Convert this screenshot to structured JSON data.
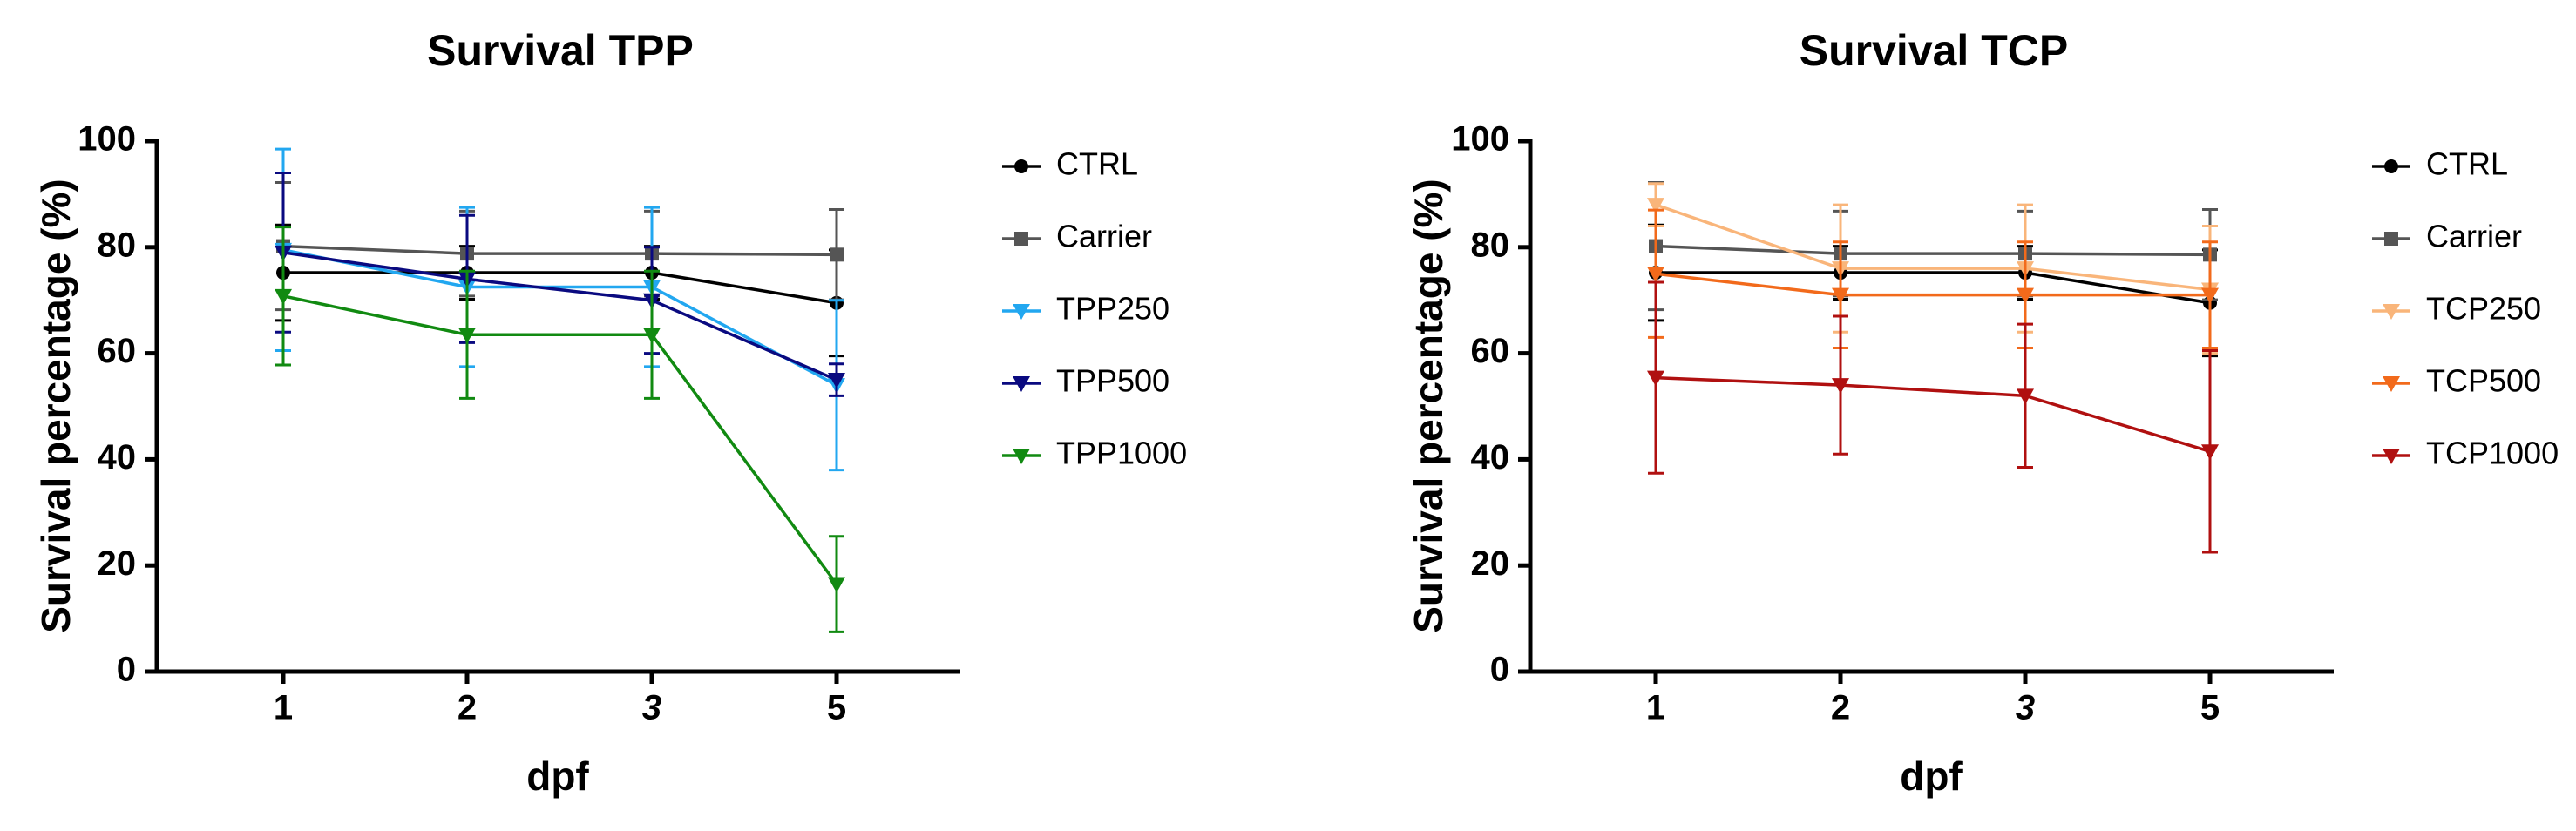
{
  "chart_data": [
    {
      "type": "line",
      "title": "Survival TPP",
      "xlabel": "dpf",
      "ylabel": "Survival percentage (%)",
      "categories": [
        "1",
        "2",
        "3",
        "5"
      ],
      "italic_categories": [
        "3"
      ],
      "ylim": [
        0,
        100
      ],
      "yticks": [
        0,
        20,
        40,
        60,
        80,
        100
      ],
      "grid": false,
      "legend_position": "right",
      "series": [
        {
          "name": "CTRL",
          "color": "#000000",
          "marker": "circle",
          "values": [
            75.2,
            75.2,
            75.2,
            69.5
          ],
          "errors": [
            9.0,
            5.0,
            5.0,
            10.0
          ]
        },
        {
          "name": "Carrier",
          "color": "#555555",
          "marker": "square",
          "values": [
            80.2,
            78.8,
            78.8,
            78.6
          ],
          "errors": [
            12.0,
            8.0,
            8.0,
            8.5
          ]
        },
        {
          "name": "TPP250",
          "color": "#22A7F0",
          "marker": "triangle-down",
          "values": [
            79.5,
            72.5,
            72.5,
            54.0
          ],
          "errors": [
            19.0,
            15.0,
            15.0,
            16.0
          ]
        },
        {
          "name": "TPP500",
          "color": "#0A0A80",
          "marker": "triangle-down",
          "values": [
            79.0,
            74.0,
            70.0,
            55.0
          ],
          "errors": [
            15.0,
            12.0,
            10.0,
            3.0
          ]
        },
        {
          "name": "TPP1000",
          "color": "#118A11",
          "marker": "triangle-down",
          "values": [
            70.8,
            63.5,
            63.5,
            16.5
          ],
          "errors": [
            13.0,
            12.0,
            12.0,
            9.0
          ]
        }
      ]
    },
    {
      "type": "line",
      "title": "Survival TCP",
      "xlabel": "dpf",
      "ylabel": "Survival percentage (%)",
      "categories": [
        "1",
        "2",
        "3",
        "5"
      ],
      "italic_categories": [
        "3"
      ],
      "ylim": [
        0,
        100
      ],
      "yticks": [
        0,
        20,
        40,
        60,
        80,
        100
      ],
      "grid": false,
      "legend_position": "right",
      "series": [
        {
          "name": "CTRL",
          "color": "#000000",
          "marker": "circle",
          "values": [
            75.2,
            75.2,
            75.2,
            69.5
          ],
          "errors": [
            9.0,
            5.0,
            5.0,
            10.0
          ]
        },
        {
          "name": "Carrier",
          "color": "#555555",
          "marker": "square",
          "values": [
            80.2,
            78.8,
            78.8,
            78.6
          ],
          "errors": [
            12.0,
            8.0,
            8.0,
            8.5
          ]
        },
        {
          "name": "TCP250",
          "color": "#F9B57A",
          "marker": "triangle-down",
          "values": [
            88.0,
            76.0,
            76.0,
            72.0
          ],
          "errors": [
            4.0,
            12.0,
            12.0,
            12.0
          ]
        },
        {
          "name": "TCP500",
          "color": "#F26A1B",
          "marker": "triangle-down",
          "values": [
            75.0,
            71.0,
            71.0,
            71.0
          ],
          "errors": [
            12.0,
            10.0,
            10.0,
            10.0
          ]
        },
        {
          "name": "TCP1000",
          "color": "#B01010",
          "marker": "triangle-down",
          "values": [
            55.4,
            54.0,
            52.0,
            41.5
          ],
          "errors": [
            18.0,
            13.0,
            13.5,
            19.0
          ]
        }
      ]
    }
  ]
}
